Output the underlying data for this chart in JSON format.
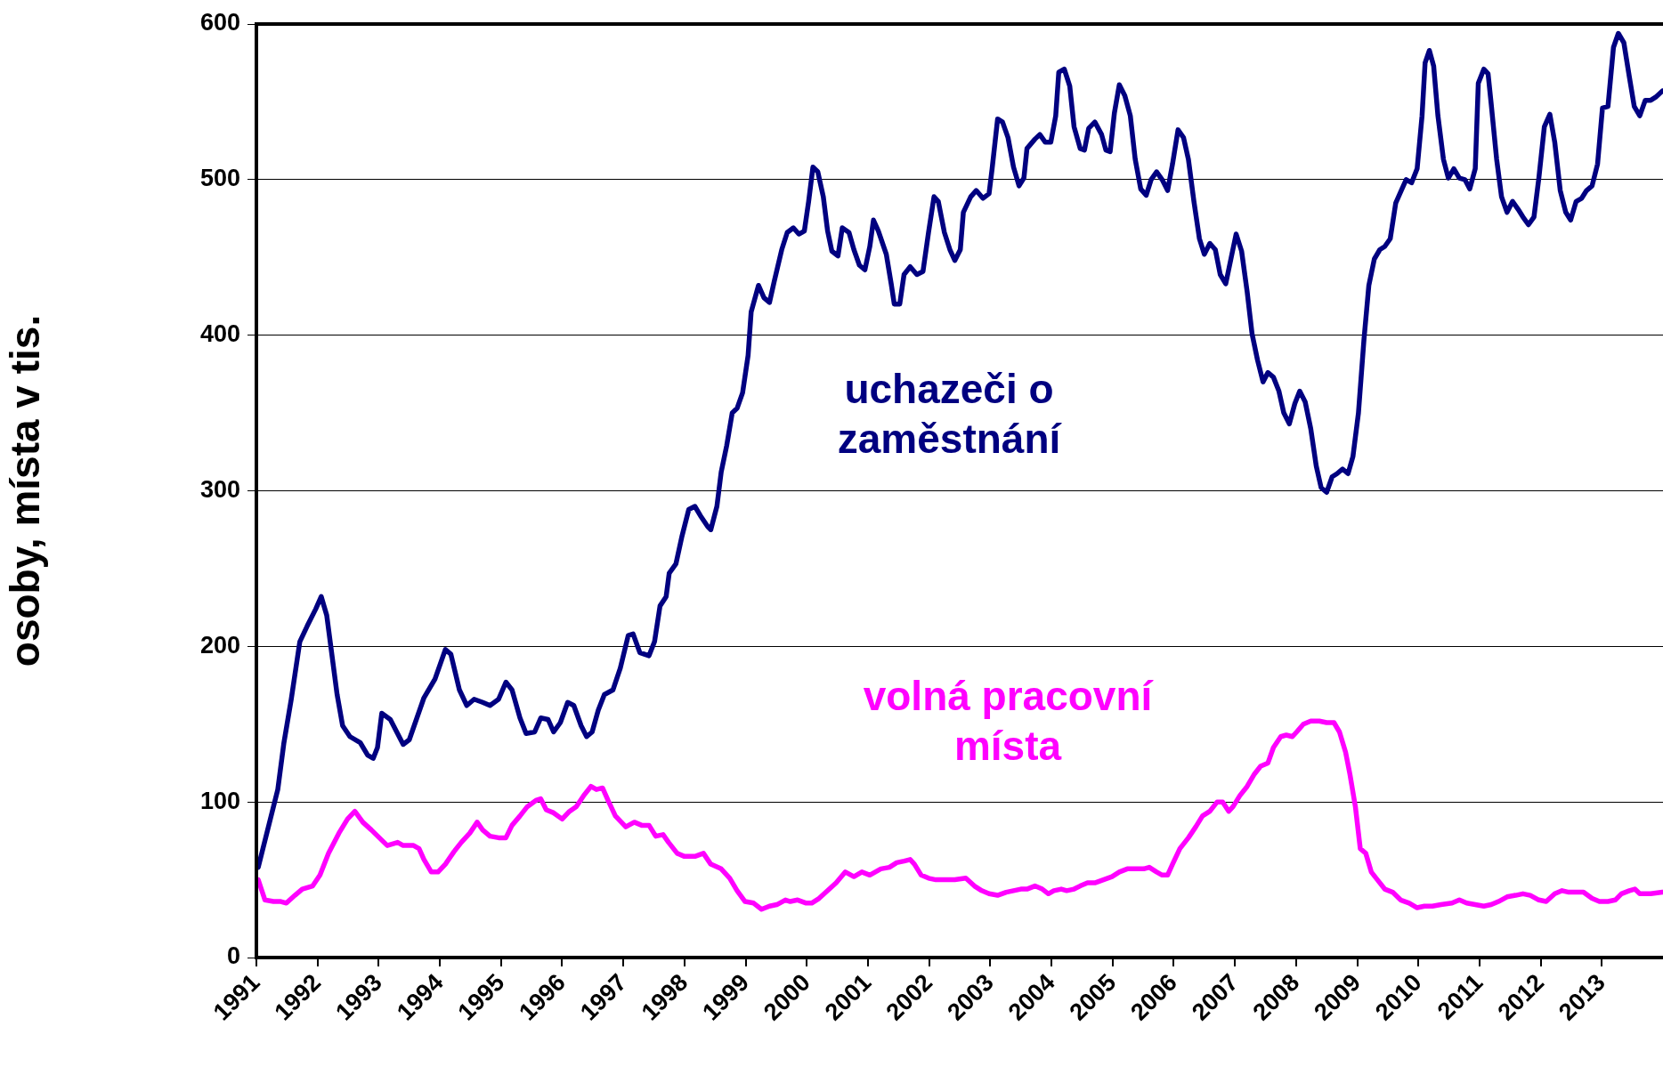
{
  "chart_data": {
    "type": "line",
    "ylabel": "osoby, místa v tis.",
    "xlim": [
      1991,
      2014
    ],
    "xticks": [
      1991,
      1992,
      1993,
      1994,
      1995,
      1996,
      1997,
      1998,
      1999,
      2000,
      2001,
      2002,
      2003,
      2004,
      2005,
      2006,
      2007,
      2008,
      2009,
      2010,
      2011,
      2012,
      2013
    ],
    "ylim": [
      0,
      600
    ],
    "yticks": [
      0,
      100,
      200,
      300,
      400,
      500,
      600
    ],
    "grid": "y",
    "legend": false,
    "marker": "none",
    "line_style": "solid",
    "series": [
      {
        "name": "uchazeči o zaměstnání",
        "color": "#000080",
        "x": [
          1991.03,
          1991.35,
          1991.45,
          1991.57,
          1991.71,
          1991.83,
          1991.97,
          1992.06,
          1992.15,
          1992.32,
          1992.41,
          1992.53,
          1992.7,
          1992.82,
          1992.91,
          1992.98,
          1993.05,
          1993.19,
          1993.4,
          1993.5,
          1993.74,
          1993.92,
          1994.09,
          1994.18,
          1994.32,
          1994.44,
          1994.56,
          1994.7,
          1994.82,
          1994.96,
          1995.08,
          1995.18,
          1995.31,
          1995.41,
          1995.55,
          1995.65,
          1995.77,
          1995.86,
          1995.97,
          1996.09,
          1996.19,
          1996.31,
          1996.4,
          1996.49,
          1996.59,
          1996.69,
          1996.83,
          1996.95,
          1997.08,
          1997.16,
          1997.27,
          1997.42,
          1997.51,
          1997.6,
          1997.7,
          1997.75,
          1997.86,
          1997.96,
          1998.07,
          1998.17,
          1998.26,
          1998.38,
          1998.43,
          1998.53,
          1998.6,
          1998.69,
          1998.78,
          1998.86,
          1998.95,
          1999.04,
          1999.09,
          1999.21,
          1999.3,
          1999.39,
          1999.47,
          1999.59,
          1999.68,
          1999.78,
          1999.87,
          1999.96,
          2000.03,
          2000.1,
          2000.18,
          2000.27,
          2000.34,
          2000.41,
          2000.51,
          2000.58,
          2000.69,
          2000.77,
          2000.86,
          2000.95,
          2001.03,
          2001.09,
          2001.17,
          2001.3,
          2001.38,
          2001.43,
          2001.52,
          2001.59,
          2001.69,
          2001.8,
          2001.9,
          2001.99,
          2002.08,
          2002.15,
          2002.25,
          2002.34,
          2002.42,
          2002.51,
          2002.56,
          2002.68,
          2002.77,
          2002.88,
          2002.98,
          2003.03,
          2003.12,
          2003.2,
          2003.29,
          2003.38,
          2003.47,
          2003.55,
          2003.6,
          2003.73,
          2003.81,
          2003.9,
          2003.99,
          2004.07,
          2004.12,
          2004.21,
          2004.3,
          2004.37,
          2004.47,
          2004.54,
          2004.61,
          2004.71,
          2004.82,
          2004.89,
          2004.96,
          2005.03,
          2005.11,
          2005.2,
          2005.29,
          2005.37,
          2005.46,
          2005.55,
          2005.63,
          2005.72,
          2005.81,
          2005.9,
          2005.98,
          2006.07,
          2006.16,
          2006.24,
          2006.33,
          2006.42,
          2006.5,
          2006.59,
          2006.68,
          2006.76,
          2006.85,
          2006.94,
          2007.02,
          2007.11,
          2007.2,
          2007.28,
          2007.37,
          2007.46,
          2007.54,
          2007.63,
          2007.72,
          2007.8,
          2007.89,
          2007.98,
          2008.06,
          2008.15,
          2008.24,
          2008.33,
          2008.41,
          2008.5,
          2008.59,
          2008.67,
          2008.76,
          2008.85,
          2008.93,
          2009.02,
          2009.11,
          2009.19,
          2009.28,
          2009.37,
          2009.45,
          2009.54,
          2009.63,
          2009.72,
          2009.8,
          2009.89,
          2009.98,
          2010.06,
          2010.11,
          2010.18,
          2010.25,
          2010.32,
          2010.41,
          2010.49,
          2010.58,
          2010.67,
          2010.76,
          2010.84,
          2010.93,
          2010.98,
          2011.07,
          2011.14,
          2011.19,
          2011.28,
          2011.36,
          2011.45,
          2011.54,
          2011.63,
          2011.71,
          2011.8,
          2011.89,
          2011.97,
          2012.06,
          2012.15,
          2012.23,
          2012.32,
          2012.41,
          2012.49,
          2012.58,
          2012.67,
          2012.75,
          2012.84,
          2012.93,
          2013.01,
          2013.1,
          2013.19,
          2013.27,
          2013.36,
          2013.45,
          2013.53,
          2013.62,
          2013.71,
          2013.8,
          2013.88,
          2013.99
        ],
        "values": [
          58,
          108,
          138,
          166,
          203,
          213,
          224,
          232,
          220,
          169,
          149,
          142,
          138,
          130,
          128,
          135,
          157,
          153,
          137,
          140,
          167,
          179,
          198,
          195,
          172,
          162,
          166,
          164,
          162,
          166,
          177,
          172,
          154,
          144,
          145,
          154,
          153,
          145,
          151,
          164,
          162,
          149,
          142,
          145,
          159,
          169,
          172,
          186,
          207,
          208,
          196,
          194,
          203,
          226,
          232,
          247,
          253,
          271,
          288,
          290,
          284,
          277,
          275,
          290,
          312,
          329,
          350,
          353,
          363,
          387,
          415,
          432,
          424,
          421,
          435,
          455,
          466,
          469,
          465,
          467,
          486,
          508,
          505,
          489,
          467,
          454,
          451,
          469,
          466,
          455,
          445,
          442,
          457,
          474,
          467,
          452,
          433,
          420,
          420,
          439,
          444,
          439,
          441,
          466,
          489,
          486,
          466,
          455,
          448,
          455,
          479,
          489,
          493,
          488,
          491,
          507,
          539,
          537,
          527,
          508,
          496,
          501,
          520,
          526,
          529,
          524,
          524,
          541,
          569,
          571,
          560,
          534,
          520,
          519,
          533,
          537,
          529,
          519,
          518,
          543,
          561,
          554,
          541,
          513,
          494,
          490,
          500,
          505,
          500,
          493,
          510,
          532,
          527,
          513,
          486,
          462,
          452,
          459,
          455,
          439,
          433,
          450,
          465,
          454,
          428,
          401,
          384,
          370,
          376,
          373,
          364,
          350,
          343,
          356,
          364,
          357,
          340,
          316,
          302,
          299,
          309,
          311,
          314,
          311,
          322,
          350,
          397,
          432,
          449,
          455,
          457,
          462,
          485,
          493,
          500,
          498,
          507,
          541,
          575,
          583,
          573,
          541,
          513,
          501,
          507,
          501,
          500,
          494,
          507,
          562,
          571,
          568,
          549,
          513,
          489,
          479,
          486,
          481,
          476,
          471,
          476,
          501,
          534,
          542,
          524,
          493,
          479,
          474,
          486,
          488,
          493,
          496,
          510,
          546,
          547,
          585,
          594,
          588,
          566,
          547,
          541,
          551,
          551,
          553,
          557
        ]
      },
      {
        "name": "volná pracovní místa",
        "color": "#ff00ff",
        "x": [
          1991.03,
          1991.14,
          1991.28,
          1991.4,
          1991.49,
          1991.63,
          1991.75,
          1991.92,
          1992.04,
          1992.18,
          1992.35,
          1992.49,
          1992.61,
          1992.74,
          1992.88,
          1993.01,
          1993.14,
          1993.31,
          1993.4,
          1993.57,
          1993.66,
          1993.74,
          1993.86,
          1993.97,
          1994.09,
          1994.23,
          1994.35,
          1994.49,
          1994.61,
          1994.7,
          1994.82,
          1994.96,
          1995.08,
          1995.18,
          1995.31,
          1995.43,
          1995.57,
          1995.65,
          1995.74,
          1995.86,
          1996.0,
          1996.12,
          1996.23,
          1996.35,
          1996.47,
          1996.56,
          1996.66,
          1996.75,
          1996.87,
          1997.04,
          1997.18,
          1997.3,
          1997.42,
          1997.53,
          1997.65,
          1997.74,
          1997.88,
          1998.0,
          1998.17,
          1998.31,
          1998.43,
          1998.6,
          1998.74,
          1998.86,
          1998.99,
          1999.13,
          1999.26,
          1999.39,
          1999.51,
          1999.65,
          1999.73,
          1999.85,
          1999.99,
          2000.08,
          2000.2,
          2000.34,
          2000.48,
          2000.63,
          2000.77,
          2000.9,
          2001.03,
          2001.21,
          2001.35,
          2001.47,
          2001.59,
          2001.69,
          2001.76,
          2001.87,
          2001.99,
          2002.11,
          2002.25,
          2002.42,
          2002.6,
          2002.74,
          2002.86,
          2002.98,
          2003.12,
          2003.26,
          2003.38,
          2003.5,
          2003.6,
          2003.73,
          2003.85,
          2003.95,
          2004.04,
          2004.16,
          2004.25,
          2004.37,
          2004.47,
          2004.59,
          2004.71,
          2004.85,
          2004.99,
          2005.11,
          2005.24,
          2005.37,
          2005.51,
          2005.6,
          2005.72,
          2005.81,
          2005.9,
          2005.98,
          2006.1,
          2006.24,
          2006.36,
          2006.47,
          2006.59,
          2006.71,
          2006.8,
          2006.9,
          2006.97,
          2007.08,
          2007.2,
          2007.32,
          2007.42,
          2007.54,
          2007.63,
          2007.75,
          2007.84,
          2007.94,
          2008.01,
          2008.12,
          2008.24,
          2008.38,
          2008.5,
          2008.62,
          2008.71,
          2008.81,
          2008.88,
          2008.97,
          2009.05,
          2009.14,
          2009.23,
          2009.33,
          2009.45,
          2009.58,
          2009.71,
          2009.85,
          2009.98,
          2010.1,
          2010.23,
          2010.37,
          2010.55,
          2010.67,
          2010.79,
          2010.93,
          2011.07,
          2011.19,
          2011.31,
          2011.45,
          2011.59,
          2011.71,
          2011.83,
          2011.97,
          2012.09,
          2012.23,
          2012.35,
          2012.46,
          2012.58,
          2012.7,
          2012.84,
          2012.96,
          2013.1,
          2013.22,
          2013.32,
          2013.45,
          2013.54,
          2013.62,
          2013.8,
          2013.99
        ],
        "values": [
          50,
          37,
          36,
          36,
          35,
          40,
          44,
          46,
          53,
          67,
          80,
          89,
          94,
          87,
          82,
          77,
          72,
          74,
          72,
          72,
          70,
          63,
          55,
          55,
          60,
          68,
          74,
          80,
          87,
          82,
          78,
          77,
          77,
          85,
          91,
          97,
          101,
          102,
          95,
          93,
          89,
          94,
          97,
          104,
          110,
          108,
          109,
          101,
          91,
          84,
          87,
          85,
          85,
          78,
          79,
          74,
          67,
          65,
          65,
          67,
          60,
          57,
          51,
          43,
          36,
          35,
          31,
          33,
          34,
          37,
          36,
          37,
          35,
          35,
          38,
          43,
          48,
          55,
          52,
          55,
          53,
          57,
          58,
          61,
          62,
          63,
          60,
          53,
          51,
          50,
          50,
          50,
          51,
          46,
          43,
          41,
          40,
          42,
          43,
          44,
          44,
          46,
          44,
          41,
          43,
          44,
          43,
          44,
          46,
          48,
          48,
          50,
          52,
          55,
          57,
          57,
          57,
          58,
          55,
          53,
          53,
          60,
          70,
          77,
          84,
          91,
          94,
          100,
          100,
          94,
          97,
          104,
          110,
          118,
          123,
          125,
          135,
          142,
          143,
          142,
          145,
          150,
          152,
          152,
          151,
          151,
          145,
          132,
          118,
          97,
          70,
          67,
          55,
          50,
          44,
          42,
          37,
          35,
          32,
          33,
          33,
          34,
          35,
          37,
          35,
          34,
          33,
          34,
          36,
          39,
          40,
          41,
          40,
          37,
          36,
          41,
          43,
          42,
          42,
          42,
          38,
          36,
          36,
          37,
          41,
          43,
          44,
          41,
          41,
          42
        ]
      }
    ]
  }
}
